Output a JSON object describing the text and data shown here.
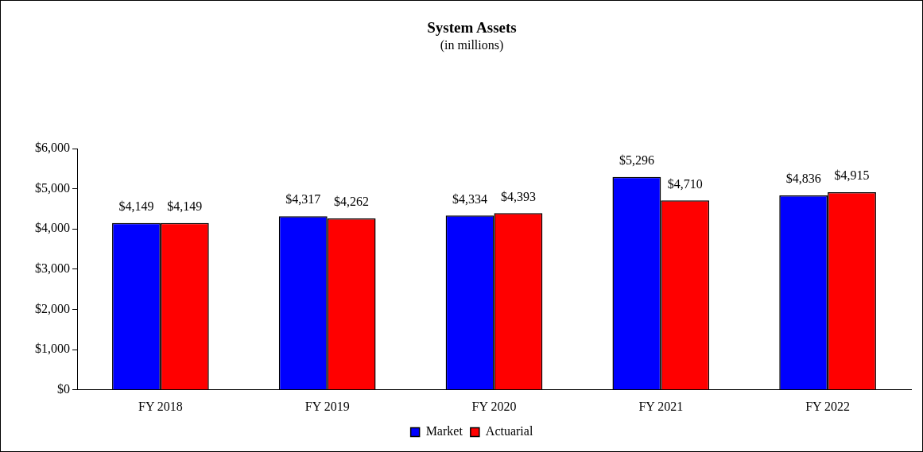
{
  "chart_data": {
    "type": "bar",
    "title": "System Assets",
    "subtitle": "(in millions)",
    "categories": [
      "FY 2018",
      "FY 2019",
      "FY 2020",
      "FY 2021",
      "FY 2022"
    ],
    "series": [
      {
        "name": "Market",
        "color": "#0000ff",
        "values": [
          4149,
          4317,
          4334,
          5296,
          4836
        ],
        "value_labels": [
          "$4,149",
          "$4,317",
          "$4,334",
          "$5,296",
          "$4,836"
        ]
      },
      {
        "name": "Actuarial",
        "color": "#ff0000",
        "values": [
          4149,
          4262,
          4393,
          4710,
          4915
        ],
        "value_labels": [
          "$4,149",
          "$4,262",
          "$4,393",
          "$4,710",
          "$4,915"
        ]
      }
    ],
    "ylim": [
      0,
      6000
    ],
    "yticks": [
      {
        "value": 0,
        "label": "$0"
      },
      {
        "value": 1000,
        "label": "$1,000"
      },
      {
        "value": 2000,
        "label": "$2,000"
      },
      {
        "value": 3000,
        "label": "$3,000"
      },
      {
        "value": 4000,
        "label": "$4,000"
      },
      {
        "value": 5000,
        "label": "$5,000"
      },
      {
        "value": 6000,
        "label": "$6,000"
      }
    ],
    "grid": false,
    "legend": "bottom"
  }
}
